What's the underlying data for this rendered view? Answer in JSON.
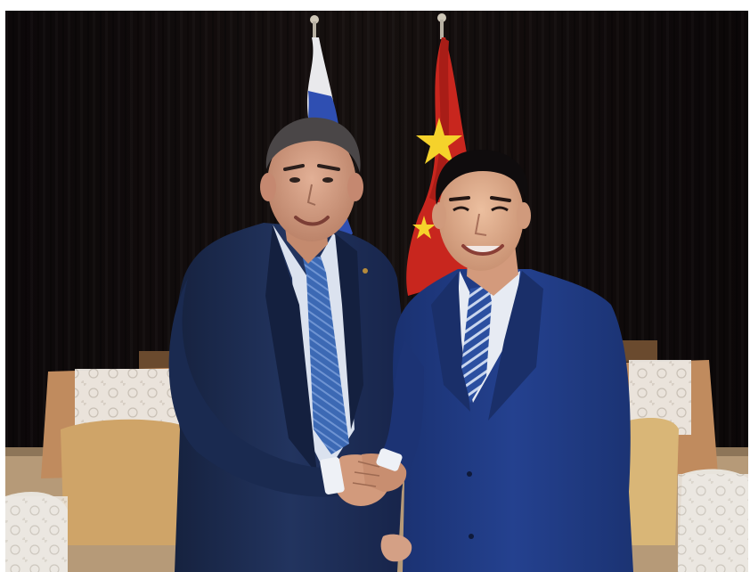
{
  "photo": {
    "subject": "handshake-photo",
    "colors": {
      "backdrop": "#120d0f",
      "floor": "#b79a76",
      "sofa": "#c08b5e",
      "lace": "#ece8e2",
      "cushion": "#cfa468",
      "flag_red": "#c8261e",
      "flag_star": "#f5d22b",
      "flag_blue": "#2f4fb2",
      "suit_left": "#1b2c55",
      "suit_right": "#1f3a86",
      "skin": "#d6a081",
      "hair": "#3f3b3c",
      "tie": "#3f6fba"
    }
  }
}
